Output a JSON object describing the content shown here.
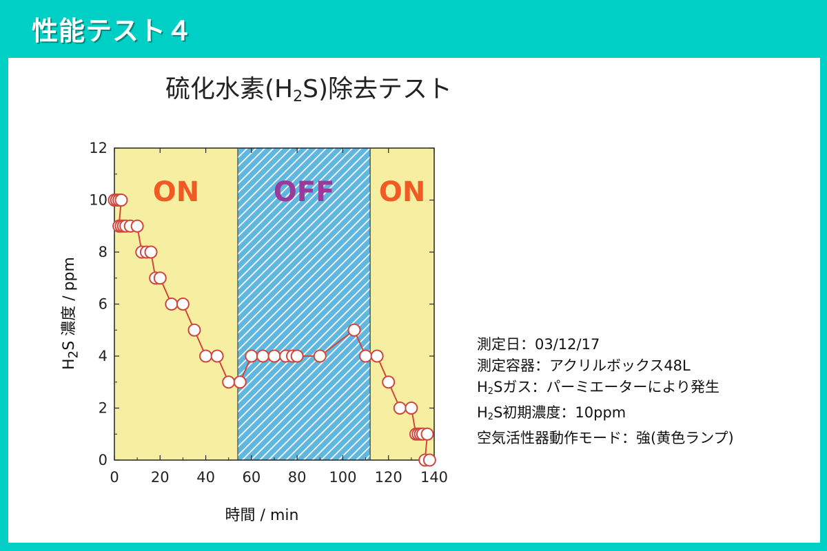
{
  "header": {
    "title": "性能テスト４"
  },
  "notes": [
    "測定日：03/12/17",
    "測定容器：アクリルボックス48L",
    "H2Sガス：パーミエーターにより発生",
    "H2S初期濃度：10ppm",
    "空気活性器動作モード：強(黄色ランプ)"
  ],
  "colors": {
    "header_bg": "#00cfc5",
    "on_bg": "#f6eea1",
    "off_bg": "#5fb6de",
    "on_text": "#f05a24",
    "off_text": "#9b3a9b",
    "series": "#d0463c"
  },
  "chart_data": {
    "type": "line",
    "title": "硫化水素(H2S)除去テスト",
    "xlabel": "時間 / min",
    "ylabel": "H2S 濃度 / ppm",
    "xlim": [
      0,
      140
    ],
    "ylim": [
      0,
      12
    ],
    "xticks": [
      0,
      20,
      40,
      60,
      80,
      100,
      120,
      140
    ],
    "yticks": [
      0,
      2,
      4,
      6,
      8,
      10,
      12
    ],
    "regions": [
      {
        "label": "ON",
        "x_start": 0,
        "x_end": 54
      },
      {
        "label": "OFF",
        "x_start": 54,
        "x_end": 112
      },
      {
        "label": "ON",
        "x_start": 112,
        "x_end": 140
      }
    ],
    "series": [
      {
        "points": [
          [
            0,
            10
          ],
          [
            1,
            10
          ],
          [
            2,
            10
          ],
          [
            3,
            10
          ],
          [
            2,
            9
          ],
          [
            3,
            9
          ],
          [
            4,
            9
          ],
          [
            5,
            9
          ],
          [
            7,
            9
          ],
          [
            10,
            9
          ],
          [
            12,
            8
          ],
          [
            14,
            8
          ],
          [
            16,
            8
          ],
          [
            18,
            7
          ],
          [
            20,
            7
          ],
          [
            25,
            6
          ],
          [
            30,
            6
          ],
          [
            35,
            5
          ],
          [
            40,
            4
          ],
          [
            45,
            4
          ],
          [
            50,
            3
          ],
          [
            55,
            3
          ],
          [
            60,
            4
          ],
          [
            65,
            4
          ],
          [
            70,
            4
          ],
          [
            75,
            4
          ],
          [
            78,
            4
          ],
          [
            80,
            4
          ],
          [
            90,
            4
          ],
          [
            105,
            5
          ],
          [
            110,
            4
          ],
          [
            115,
            4
          ],
          [
            120,
            3
          ],
          [
            125,
            2
          ],
          [
            130,
            2
          ],
          [
            132,
            1
          ],
          [
            133,
            1
          ],
          [
            134,
            1
          ],
          [
            135,
            1
          ],
          [
            137,
            1
          ],
          [
            136,
            0
          ],
          [
            138,
            0
          ]
        ]
      }
    ]
  }
}
